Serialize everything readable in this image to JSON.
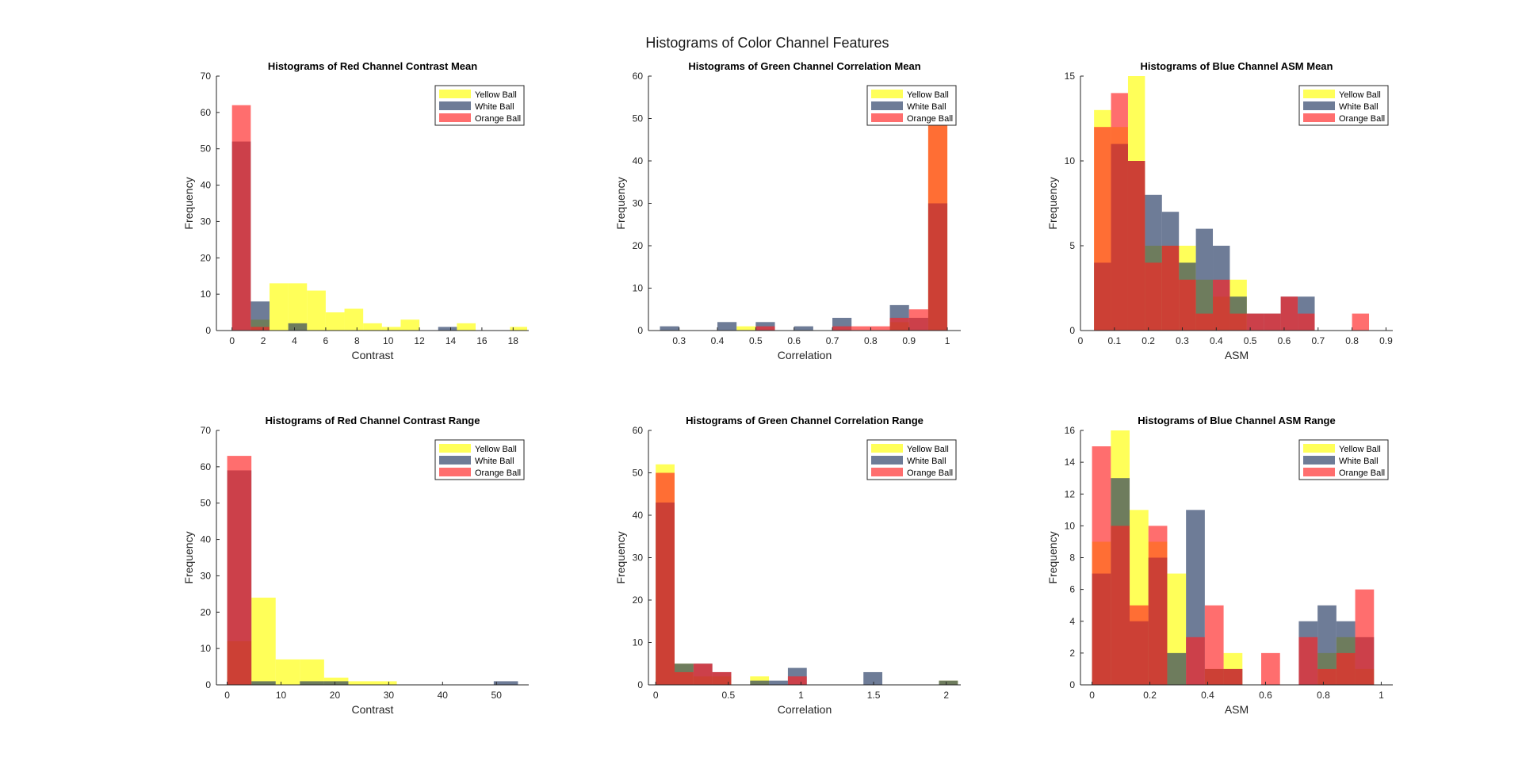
{
  "figure": {
    "title": "Histograms of Color Channel Features",
    "legend_labels": [
      "Yellow Ball",
      "White Ball",
      "Orange Ball"
    ],
    "colors": {
      "yellow": "#FFFF00",
      "white": "#203560",
      "orange": "#FF2020"
    },
    "bar_alpha": 0.65
  },
  "chart_data": [
    {
      "type": "bar",
      "title": "Histograms of Red Channel Contrast Mean",
      "xlabel": "Contrast",
      "ylabel": "Frequency",
      "xlim": [
        -1,
        19
      ],
      "ylim": [
        0,
        70
      ],
      "xticks": [
        0,
        2,
        4,
        6,
        8,
        10,
        12,
        14,
        16,
        18
      ],
      "yticks": [
        0,
        10,
        20,
        30,
        40,
        50,
        60,
        70
      ],
      "legend": "top-right",
      "series": [
        {
          "name": "Yellow Ball",
          "bins": [
            [
              1.2,
              2.4,
              3
            ],
            [
              2.4,
              3.6,
              13
            ],
            [
              3.6,
              4.8,
              13
            ],
            [
              4.8,
              6.0,
              11
            ],
            [
              6.0,
              7.2,
              5
            ],
            [
              7.2,
              8.4,
              6
            ],
            [
              8.4,
              9.6,
              2
            ],
            [
              9.6,
              10.8,
              1
            ],
            [
              10.8,
              12.0,
              3
            ],
            [
              14.4,
              15.6,
              2
            ],
            [
              17.8,
              18.9,
              1
            ]
          ]
        },
        {
          "name": "White Ball",
          "bins": [
            [
              0,
              1.2,
              52
            ],
            [
              1.2,
              2.4,
              8
            ],
            [
              3.6,
              4.8,
              2
            ],
            [
              13.2,
              14.4,
              1
            ]
          ]
        },
        {
          "name": "Orange Ball",
          "bins": [
            [
              0,
              1.2,
              62
            ],
            [
              1.2,
              2.4,
              1
            ]
          ]
        }
      ]
    },
    {
      "type": "bar",
      "title": "Histograms of Green Channel Correlation Mean",
      "xlabel": "Correlation",
      "ylabel": "Frequency",
      "xlim": [
        0.22,
        1.035
      ],
      "ylim": [
        0,
        60
      ],
      "xticks": [
        0.3,
        0.4,
        0.5,
        0.6,
        0.7,
        0.8,
        0.9,
        1
      ],
      "yticks": [
        0,
        10,
        20,
        30,
        40,
        50,
        60
      ],
      "legend": "top-right",
      "series": [
        {
          "name": "Yellow Ball",
          "bins": [
            [
              0.45,
              0.5,
              1
            ],
            [
              0.85,
              0.9,
              2
            ],
            [
              0.95,
              1.0,
              56
            ]
          ]
        },
        {
          "name": "White Ball",
          "bins": [
            [
              0.25,
              0.3,
              1
            ],
            [
              0.4,
              0.45,
              2
            ],
            [
              0.5,
              0.55,
              2
            ],
            [
              0.6,
              0.65,
              1
            ],
            [
              0.7,
              0.75,
              3
            ],
            [
              0.85,
              0.9,
              6
            ],
            [
              0.9,
              0.95,
              3
            ],
            [
              0.95,
              1.0,
              30
            ]
          ]
        },
        {
          "name": "Orange Ball",
          "bins": [
            [
              0.5,
              0.55,
              1
            ],
            [
              0.7,
              0.75,
              1
            ],
            [
              0.75,
              0.8,
              1
            ],
            [
              0.8,
              0.85,
              1
            ],
            [
              0.85,
              0.9,
              3
            ],
            [
              0.9,
              0.95,
              5
            ],
            [
              0.95,
              1.0,
              50
            ]
          ]
        }
      ]
    },
    {
      "type": "bar",
      "title": "Histograms of Blue Channel ASM Mean",
      "xlabel": "ASM",
      "ylabel": "Frequency",
      "xlim": [
        0,
        0.92
      ],
      "ylim": [
        0,
        15
      ],
      "xticks": [
        0,
        0.1,
        0.2,
        0.3,
        0.4,
        0.5,
        0.6,
        0.7,
        0.8,
        0.9
      ],
      "yticks": [
        0,
        5,
        10,
        15
      ],
      "legend": "top-right",
      "series": [
        {
          "name": "Yellow Ball",
          "bins": [
            [
              0.04,
              0.09,
              13
            ],
            [
              0.09,
              0.14,
              12
            ],
            [
              0.14,
              0.19,
              15
            ],
            [
              0.19,
              0.24,
              5
            ],
            [
              0.24,
              0.29,
              5
            ],
            [
              0.29,
              0.34,
              5
            ],
            [
              0.34,
              0.39,
              3
            ],
            [
              0.39,
              0.44,
              2
            ],
            [
              0.44,
              0.49,
              3
            ]
          ]
        },
        {
          "name": "White Ball",
          "bins": [
            [
              0.04,
              0.09,
              4
            ],
            [
              0.09,
              0.14,
              11
            ],
            [
              0.14,
              0.19,
              10
            ],
            [
              0.19,
              0.24,
              8
            ],
            [
              0.24,
              0.29,
              7
            ],
            [
              0.29,
              0.34,
              4
            ],
            [
              0.34,
              0.39,
              6
            ],
            [
              0.39,
              0.44,
              5
            ],
            [
              0.44,
              0.49,
              2
            ],
            [
              0.49,
              0.54,
              1
            ],
            [
              0.54,
              0.59,
              1
            ],
            [
              0.59,
              0.64,
              2
            ],
            [
              0.64,
              0.69,
              2
            ]
          ]
        },
        {
          "name": "Orange Ball",
          "bins": [
            [
              0.04,
              0.09,
              12
            ],
            [
              0.09,
              0.14,
              14
            ],
            [
              0.14,
              0.19,
              10
            ],
            [
              0.19,
              0.24,
              4
            ],
            [
              0.24,
              0.29,
              5
            ],
            [
              0.29,
              0.34,
              3
            ],
            [
              0.34,
              0.39,
              1
            ],
            [
              0.39,
              0.44,
              3
            ],
            [
              0.44,
              0.49,
              1
            ],
            [
              0.49,
              0.54,
              1
            ],
            [
              0.54,
              0.59,
              1
            ],
            [
              0.59,
              0.64,
              2
            ],
            [
              0.64,
              0.69,
              1
            ],
            [
              0.8,
              0.85,
              1
            ]
          ]
        }
      ]
    },
    {
      "type": "bar",
      "title": "Histograms of Red Channel Contrast Range",
      "xlabel": "Contrast",
      "ylabel": "Frequency",
      "xlim": [
        -2,
        56
      ],
      "ylim": [
        0,
        70
      ],
      "xticks": [
        0,
        10,
        20,
        30,
        40,
        50
      ],
      "yticks": [
        0,
        10,
        20,
        30,
        40,
        50,
        60,
        70
      ],
      "legend": "top-right",
      "series": [
        {
          "name": "Yellow Ball",
          "bins": [
            [
              0,
              4.5,
              12
            ],
            [
              4.5,
              9,
              24
            ],
            [
              9,
              13.5,
              7
            ],
            [
              13.5,
              18,
              7
            ],
            [
              18,
              22.5,
              2
            ],
            [
              22.5,
              27,
              1
            ],
            [
              27,
              31.5,
              1
            ]
          ]
        },
        {
          "name": "White Ball",
          "bins": [
            [
              0,
              4.5,
              59
            ],
            [
              4.5,
              9,
              1
            ],
            [
              13.5,
              18,
              1
            ],
            [
              18,
              22.5,
              1
            ],
            [
              49.5,
              54,
              1
            ]
          ]
        },
        {
          "name": "Orange Ball",
          "bins": [
            [
              0,
              4.5,
              63
            ]
          ]
        }
      ]
    },
    {
      "type": "bar",
      "title": "Histograms of Green Channel Correlation Range",
      "xlabel": "Correlation",
      "ylabel": "Frequency",
      "xlim": [
        -0.05,
        2.1
      ],
      "ylim": [
        0,
        60
      ],
      "xticks": [
        0,
        0.5,
        1,
        1.5,
        2
      ],
      "yticks": [
        0,
        10,
        20,
        30,
        40,
        50,
        60
      ],
      "legend": "top-right",
      "series": [
        {
          "name": "Yellow Ball",
          "bins": [
            [
              0,
              0.13,
              52
            ],
            [
              0.13,
              0.26,
              5
            ],
            [
              0.26,
              0.39,
              2
            ],
            [
              0.39,
              0.52,
              2
            ],
            [
              0.65,
              0.78,
              2
            ],
            [
              1.95,
              2.08,
              1
            ]
          ]
        },
        {
          "name": "White Ball",
          "bins": [
            [
              0,
              0.13,
              43
            ],
            [
              0.13,
              0.26,
              5
            ],
            [
              0.26,
              0.39,
              5
            ],
            [
              0.39,
              0.52,
              3
            ],
            [
              0.65,
              0.78,
              1
            ],
            [
              0.78,
              0.91,
              1
            ],
            [
              0.91,
              1.04,
              4
            ],
            [
              1.43,
              1.56,
              3
            ],
            [
              1.95,
              2.08,
              1
            ]
          ]
        },
        {
          "name": "Orange Ball",
          "bins": [
            [
              0,
              0.13,
              50
            ],
            [
              0.13,
              0.26,
              3
            ],
            [
              0.26,
              0.39,
              5
            ],
            [
              0.39,
              0.52,
              3
            ],
            [
              0.91,
              1.04,
              2
            ]
          ]
        }
      ]
    },
    {
      "type": "bar",
      "title": "Histograms of Blue Channel ASM Range",
      "xlabel": "ASM",
      "ylabel": "Frequency",
      "xlim": [
        -0.04,
        1.04
      ],
      "ylim": [
        0,
        16
      ],
      "xticks": [
        0,
        0.2,
        0.4,
        0.6,
        0.8,
        1
      ],
      "yticks": [
        0,
        2,
        4,
        6,
        8,
        10,
        12,
        14,
        16
      ],
      "legend": "top-right",
      "series": [
        {
          "name": "Yellow Ball",
          "bins": [
            [
              0,
              0.065,
              9
            ],
            [
              0.065,
              0.13,
              16
            ],
            [
              0.13,
              0.195,
              11
            ],
            [
              0.195,
              0.26,
              9
            ],
            [
              0.26,
              0.325,
              7
            ],
            [
              0.39,
              0.455,
              1
            ],
            [
              0.455,
              0.52,
              2
            ],
            [
              0.78,
              0.845,
              2
            ],
            [
              0.845,
              0.91,
              3
            ],
            [
              0.91,
              0.975,
              1
            ]
          ]
        },
        {
          "name": "White Ball",
          "bins": [
            [
              0,
              0.065,
              7
            ],
            [
              0.065,
              0.13,
              13
            ],
            [
              0.13,
              0.195,
              4
            ],
            [
              0.195,
              0.26,
              8
            ],
            [
              0.26,
              0.325,
              2
            ],
            [
              0.325,
              0.39,
              11
            ],
            [
              0.39,
              0.455,
              1
            ],
            [
              0.455,
              0.52,
              1
            ],
            [
              0.715,
              0.78,
              4
            ],
            [
              0.78,
              0.845,
              5
            ],
            [
              0.845,
              0.91,
              4
            ],
            [
              0.91,
              0.975,
              3
            ]
          ]
        },
        {
          "name": "Orange Ball",
          "bins": [
            [
              0,
              0.065,
              15
            ],
            [
              0.065,
              0.13,
              10
            ],
            [
              0.13,
              0.195,
              5
            ],
            [
              0.195,
              0.26,
              10
            ],
            [
              0.325,
              0.39,
              3
            ],
            [
              0.39,
              0.455,
              5
            ],
            [
              0.455,
              0.52,
              1
            ],
            [
              0.585,
              0.65,
              2
            ],
            [
              0.715,
              0.78,
              3
            ],
            [
              0.78,
              0.845,
              1
            ],
            [
              0.845,
              0.91,
              2
            ],
            [
              0.91,
              0.975,
              6
            ]
          ]
        }
      ]
    }
  ]
}
